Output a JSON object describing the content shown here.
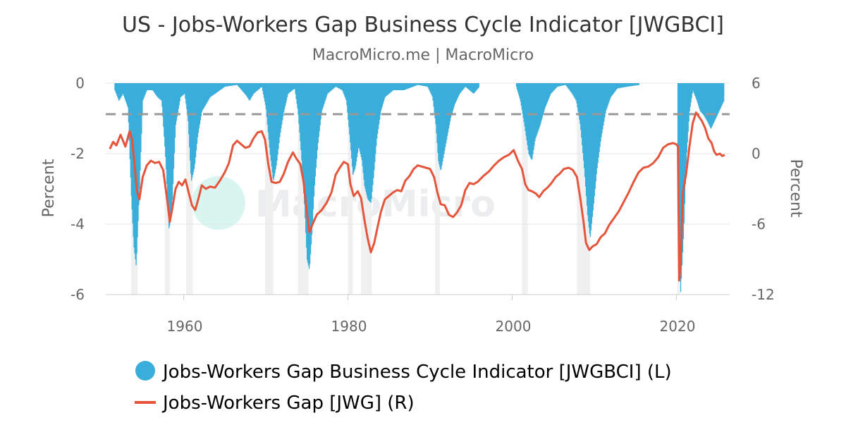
{
  "chart_data": {
    "type": "bar+line",
    "title": "US - Jobs-Workers Gap Business Cycle Indicator [JWGBCI]",
    "subtitle": "MacroMicro.me | MacroMicro",
    "watermark": "MacroMicro",
    "x_ticks": [
      "1960",
      "1980",
      "2000",
      "2020"
    ],
    "x_range": [
      1950.5,
      2026.5
    ],
    "left_axis": {
      "title": "Percent",
      "range": [
        -6,
        0
      ],
      "ticks": [
        "0",
        "-2",
        "-4",
        "-6"
      ]
    },
    "right_axis": {
      "title": "Percent",
      "range": [
        -12,
        6
      ],
      "ticks": [
        "6",
        "0",
        "-6",
        "-12"
      ]
    },
    "threshold_line_left": -0.88,
    "recessions": [
      [
        1953.6,
        1954.4
      ],
      [
        1957.7,
        1958.3
      ],
      [
        1960.3,
        1961.1
      ],
      [
        1969.9,
        1970.9
      ],
      [
        1973.9,
        1975.2
      ],
      [
        1980.0,
        1980.6
      ],
      [
        1981.6,
        1982.9
      ],
      [
        1990.6,
        1991.2
      ],
      [
        2001.2,
        2001.9
      ],
      [
        2007.9,
        2009.5
      ],
      [
        2020.1,
        2020.4
      ]
    ],
    "series": [
      {
        "name": "Jobs-Workers Gap Business Cycle Indicator [JWGBCI] (L)",
        "type": "bar",
        "axis": "left",
        "color": "#3aaedb",
        "points": [
          [
            1951.6,
            -0.2
          ],
          [
            1952.1,
            -0.5
          ],
          [
            1952.6,
            -0.3
          ],
          [
            1953.2,
            -0.7
          ],
          [
            1953.6,
            -3.2
          ],
          [
            1953.9,
            -4.6
          ],
          [
            1954.2,
            -5.2
          ],
          [
            1954.6,
            -3.0
          ],
          [
            1955.0,
            -0.5
          ],
          [
            1955.5,
            -0.2
          ],
          [
            1956.2,
            -0.2
          ],
          [
            1956.8,
            -0.4
          ],
          [
            1957.3,
            -0.5
          ],
          [
            1957.8,
            -2.2
          ],
          [
            1958.2,
            -4.2
          ],
          [
            1958.6,
            -3.3
          ],
          [
            1959.0,
            -1.2
          ],
          [
            1959.6,
            -0.4
          ],
          [
            1960.1,
            -0.3
          ],
          [
            1960.5,
            -1.0
          ],
          [
            1960.9,
            -2.8
          ],
          [
            1961.3,
            -2.4
          ],
          [
            1961.7,
            -1.5
          ],
          [
            1962.2,
            -0.8
          ],
          [
            1962.7,
            -0.6
          ],
          [
            1963.2,
            -0.4
          ],
          [
            1963.8,
            -0.3
          ],
          [
            1964.4,
            -0.2
          ],
          [
            1965.0,
            -0.1
          ],
          [
            1966.5,
            -0.05
          ],
          [
            1967.6,
            -0.35
          ],
          [
            1968.0,
            -0.5
          ],
          [
            1968.5,
            -0.3
          ],
          [
            1969.5,
            -0.1
          ],
          [
            1970.0,
            -0.7
          ],
          [
            1970.5,
            -2.0
          ],
          [
            1970.9,
            -2.8
          ],
          [
            1971.3,
            -2.3
          ],
          [
            1971.7,
            -1.5
          ],
          [
            1972.2,
            -0.8
          ],
          [
            1972.7,
            -0.3
          ],
          [
            1973.5,
            -0.15
          ],
          [
            1973.9,
            -0.8
          ],
          [
            1974.3,
            -2.0
          ],
          [
            1974.7,
            -3.5
          ],
          [
            1975.0,
            -5.0
          ],
          [
            1975.3,
            -5.3
          ],
          [
            1975.6,
            -4.3
          ],
          [
            1975.9,
            -3.0
          ],
          [
            1976.3,
            -1.8
          ],
          [
            1976.8,
            -0.8
          ],
          [
            1977.5,
            -0.3
          ],
          [
            1978.5,
            -0.1
          ],
          [
            1979.3,
            -0.2
          ],
          [
            1979.8,
            -0.5
          ],
          [
            1980.2,
            -1.5
          ],
          [
            1980.6,
            -2.6
          ],
          [
            1980.9,
            -2.4
          ],
          [
            1981.3,
            -1.8
          ],
          [
            1981.7,
            -2.2
          ],
          [
            1982.0,
            -2.9
          ],
          [
            1982.4,
            -3.3
          ],
          [
            1982.8,
            -3.4
          ],
          [
            1983.1,
            -2.7
          ],
          [
            1983.5,
            -1.6
          ],
          [
            1984.0,
            -0.8
          ],
          [
            1984.5,
            -0.4
          ],
          [
            1985.5,
            -0.2
          ],
          [
            1986.8,
            -0.2
          ],
          [
            1988.5,
            -0.05
          ],
          [
            1989.7,
            -0.1
          ],
          [
            1990.3,
            -0.4
          ],
          [
            1990.7,
            -1.2
          ],
          [
            1991.0,
            -2.2
          ],
          [
            1991.3,
            -2.5
          ],
          [
            1991.7,
            -2.0
          ],
          [
            1992.1,
            -1.5
          ],
          [
            1992.5,
            -1.0
          ],
          [
            1993.0,
            -0.6
          ],
          [
            1993.6,
            -0.3
          ],
          [
            1994.3,
            -0.1
          ],
          [
            1995.3,
            -0.3
          ],
          [
            1996.0,
            -0.1
          ],
          [
            2000.5,
            -0.1
          ],
          [
            2001.0,
            -0.5
          ],
          [
            2001.5,
            -1.2
          ],
          [
            2002.0,
            -2.0
          ],
          [
            2002.4,
            -2.2
          ],
          [
            2002.8,
            -1.6
          ],
          [
            2003.4,
            -1.2
          ],
          [
            2004.0,
            -0.7
          ],
          [
            2004.7,
            -0.3
          ],
          [
            2005.5,
            -0.1
          ],
          [
            2006.5,
            -0.05
          ],
          [
            2007.3,
            -0.3
          ],
          [
            2007.8,
            -0.5
          ],
          [
            2008.3,
            -1.2
          ],
          [
            2008.8,
            -2.5
          ],
          [
            2009.2,
            -3.8
          ],
          [
            2009.5,
            -4.4
          ],
          [
            2009.9,
            -3.5
          ],
          [
            2010.3,
            -2.5
          ],
          [
            2010.8,
            -1.6
          ],
          [
            2011.4,
            -0.8
          ],
          [
            2012.0,
            -0.4
          ],
          [
            2012.8,
            -0.15
          ],
          [
            2014.0,
            -0.1
          ],
          [
            2015.5,
            -0.05
          ],
          [
            2020.1,
            -0.5
          ],
          [
            2020.3,
            -3.5
          ],
          [
            2020.5,
            -6.0
          ],
          [
            2020.9,
            -4.2
          ],
          [
            2021.2,
            -2.2
          ],
          [
            2021.6,
            -0.8
          ],
          [
            2022.0,
            -0.2
          ],
          [
            2022.5,
            -0.5
          ],
          [
            2022.9,
            -0.8
          ],
          [
            2023.3,
            -0.9
          ],
          [
            2023.8,
            -1.1
          ],
          [
            2024.2,
            -1.3
          ],
          [
            2024.6,
            -1.1
          ],
          [
            2025.0,
            -0.9
          ],
          [
            2025.4,
            -0.7
          ],
          [
            2025.8,
            -0.5
          ]
        ]
      },
      {
        "name": "Jobs-Workers Gap [JWG] (R)",
        "type": "line",
        "axis": "right",
        "color": "#e5553b",
        "points": [
          [
            1951.0,
            0.4
          ],
          [
            1951.4,
            1.0
          ],
          [
            1951.8,
            0.7
          ],
          [
            1952.3,
            1.6
          ],
          [
            1952.9,
            0.6
          ],
          [
            1953.4,
            1.9
          ],
          [
            1953.7,
            1.2
          ],
          [
            1954.0,
            -0.9
          ],
          [
            1954.3,
            -3.2
          ],
          [
            1954.6,
            -3.9
          ],
          [
            1955.0,
            -2.0
          ],
          [
            1955.5,
            -1.0
          ],
          [
            1956.0,
            -0.6
          ],
          [
            1956.5,
            -0.8
          ],
          [
            1957.0,
            -0.7
          ],
          [
            1957.5,
            -1.4
          ],
          [
            1958.0,
            -4.0
          ],
          [
            1958.3,
            -5.8
          ],
          [
            1958.6,
            -4.7
          ],
          [
            1959.0,
            -3.0
          ],
          [
            1959.4,
            -2.4
          ],
          [
            1959.8,
            -2.7
          ],
          [
            1960.2,
            -2.2
          ],
          [
            1960.6,
            -3.3
          ],
          [
            1961.0,
            -4.4
          ],
          [
            1961.4,
            -4.8
          ],
          [
            1961.8,
            -3.8
          ],
          [
            1962.2,
            -2.7
          ],
          [
            1962.7,
            -3.0
          ],
          [
            1963.2,
            -2.8
          ],
          [
            1963.8,
            -2.9
          ],
          [
            1964.4,
            -2.3
          ],
          [
            1965.0,
            -1.6
          ],
          [
            1965.5,
            -0.8
          ],
          [
            1966.0,
            0.7
          ],
          [
            1966.5,
            1.1
          ],
          [
            1967.0,
            0.8
          ],
          [
            1967.5,
            0.5
          ],
          [
            1968.0,
            0.6
          ],
          [
            1968.5,
            1.3
          ],
          [
            1969.0,
            1.8
          ],
          [
            1969.5,
            1.9
          ],
          [
            1969.9,
            1.2
          ],
          [
            1970.3,
            -0.9
          ],
          [
            1970.7,
            -2.4
          ],
          [
            1971.2,
            -2.5
          ],
          [
            1971.7,
            -2.4
          ],
          [
            1972.2,
            -1.7
          ],
          [
            1972.7,
            -0.7
          ],
          [
            1973.3,
            0.1
          ],
          [
            1973.7,
            -0.4
          ],
          [
            1974.2,
            -0.9
          ],
          [
            1974.6,
            -2.4
          ],
          [
            1975.0,
            -5.0
          ],
          [
            1975.3,
            -6.7
          ],
          [
            1975.7,
            -6.0
          ],
          [
            1976.2,
            -5.2
          ],
          [
            1976.8,
            -4.8
          ],
          [
            1977.4,
            -4.2
          ],
          [
            1978.0,
            -3.3
          ],
          [
            1978.5,
            -1.8
          ],
          [
            1979.0,
            -1.2
          ],
          [
            1979.5,
            -0.7
          ],
          [
            1980.0,
            -0.9
          ],
          [
            1980.3,
            -2.6
          ],
          [
            1980.7,
            -3.6
          ],
          [
            1981.2,
            -3.2
          ],
          [
            1981.6,
            -3.8
          ],
          [
            1982.0,
            -5.6
          ],
          [
            1982.4,
            -7.2
          ],
          [
            1982.8,
            -8.4
          ],
          [
            1983.2,
            -7.6
          ],
          [
            1983.6,
            -6.3
          ],
          [
            1984.0,
            -5.0
          ],
          [
            1984.5,
            -3.9
          ],
          [
            1985.0,
            -3.6
          ],
          [
            1985.5,
            -3.3
          ],
          [
            1986.0,
            -3.1
          ],
          [
            1986.5,
            -3.2
          ],
          [
            1987.0,
            -2.3
          ],
          [
            1987.5,
            -1.9
          ],
          [
            1988.0,
            -1.3
          ],
          [
            1988.5,
            -1.0
          ],
          [
            1989.0,
            -1.1
          ],
          [
            1989.5,
            -1.2
          ],
          [
            1990.0,
            -1.3
          ],
          [
            1990.5,
            -2.0
          ],
          [
            1990.9,
            -3.3
          ],
          [
            1991.3,
            -4.3
          ],
          [
            1991.8,
            -4.4
          ],
          [
            1992.3,
            -5.2
          ],
          [
            1992.8,
            -5.4
          ],
          [
            1993.3,
            -5.0
          ],
          [
            1993.8,
            -4.4
          ],
          [
            1994.3,
            -3.1
          ],
          [
            1994.8,
            -2.5
          ],
          [
            1995.3,
            -2.6
          ],
          [
            1995.8,
            -2.4
          ],
          [
            1996.5,
            -1.9
          ],
          [
            1997.2,
            -1.5
          ],
          [
            1997.8,
            -1.0
          ],
          [
            1998.4,
            -0.6
          ],
          [
            1999.0,
            -0.3
          ],
          [
            1999.6,
            -0.1
          ],
          [
            2000.2,
            0.3
          ],
          [
            2000.7,
            -0.6
          ],
          [
            2001.2,
            -1.3
          ],
          [
            2001.6,
            -2.6
          ],
          [
            2002.0,
            -3.1
          ],
          [
            2002.4,
            -3.2
          ],
          [
            2002.9,
            -3.4
          ],
          [
            2003.3,
            -3.7
          ],
          [
            2003.8,
            -3.2
          ],
          [
            2004.3,
            -2.9
          ],
          [
            2004.8,
            -2.5
          ],
          [
            2005.3,
            -2.0
          ],
          [
            2005.8,
            -1.7
          ],
          [
            2006.3,
            -1.3
          ],
          [
            2006.9,
            -1.2
          ],
          [
            2007.4,
            -1.4
          ],
          [
            2007.9,
            -2.0
          ],
          [
            2008.3,
            -3.8
          ],
          [
            2008.7,
            -5.8
          ],
          [
            2009.0,
            -7.6
          ],
          [
            2009.4,
            -8.2
          ],
          [
            2009.8,
            -7.9
          ],
          [
            2010.3,
            -7.7
          ],
          [
            2010.8,
            -7.1
          ],
          [
            2011.3,
            -6.8
          ],
          [
            2011.8,
            -6.1
          ],
          [
            2012.4,
            -5.5
          ],
          [
            2013.0,
            -4.9
          ],
          [
            2013.6,
            -4.1
          ],
          [
            2014.2,
            -3.3
          ],
          [
            2014.8,
            -2.4
          ],
          [
            2015.4,
            -1.6
          ],
          [
            2016.0,
            -1.2
          ],
          [
            2016.6,
            -1.1
          ],
          [
            2017.2,
            -0.8
          ],
          [
            2017.8,
            -0.3
          ],
          [
            2018.4,
            0.5
          ],
          [
            2019.0,
            0.8
          ],
          [
            2019.6,
            0.9
          ],
          [
            2020.0,
            0.8
          ],
          [
            2020.2,
            0.6
          ],
          [
            2020.35,
            -10.8
          ],
          [
            2020.5,
            -9.6
          ],
          [
            2020.8,
            -3.3
          ],
          [
            2021.2,
            -1.7
          ],
          [
            2021.6,
            0.6
          ],
          [
            2022.0,
            2.6
          ],
          [
            2022.4,
            3.5
          ],
          [
            2022.7,
            3.2
          ],
          [
            2023.1,
            2.8
          ],
          [
            2023.5,
            2.2
          ],
          [
            2023.9,
            1.3
          ],
          [
            2024.3,
            0.9
          ],
          [
            2024.6,
            0.2
          ],
          [
            2024.9,
            -0.1
          ],
          [
            2025.3,
            0.0
          ],
          [
            2025.6,
            -0.2
          ],
          [
            2025.9,
            -0.1
          ]
        ]
      }
    ]
  }
}
